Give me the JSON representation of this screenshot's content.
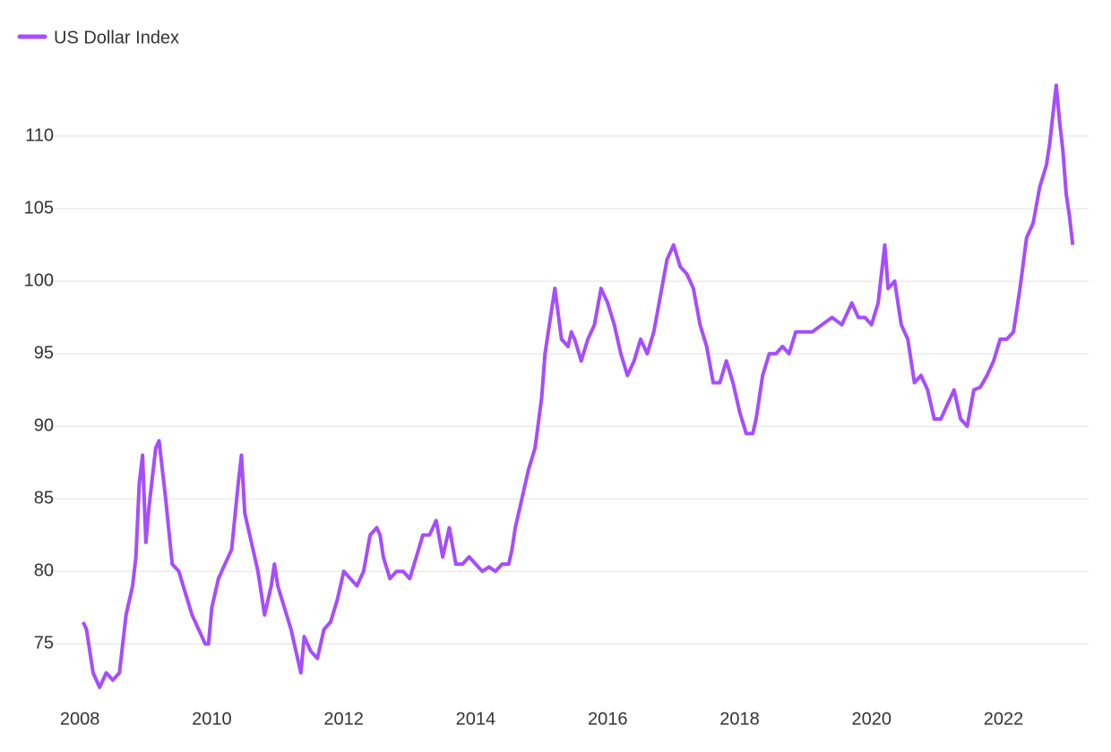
{
  "chart_data": {
    "type": "line",
    "x": [
      2008.05,
      2008.1,
      2008.2,
      2008.3,
      2008.4,
      2008.5,
      2008.6,
      2008.7,
      2008.8,
      2008.85,
      2008.9,
      2008.95,
      2009.0,
      2009.05,
      2009.15,
      2009.2,
      2009.3,
      2009.4,
      2009.5,
      2009.6,
      2009.7,
      2009.8,
      2009.9,
      2009.95,
      2010.0,
      2010.1,
      2010.2,
      2010.3,
      2010.4,
      2010.45,
      2010.5,
      2010.6,
      2010.7,
      2010.8,
      2010.9,
      2010.95,
      2011.0,
      2011.1,
      2011.2,
      2011.3,
      2011.35,
      2011.4,
      2011.5,
      2011.6,
      2011.7,
      2011.8,
      2011.9,
      2012.0,
      2012.1,
      2012.2,
      2012.3,
      2012.4,
      2012.5,
      2012.55,
      2012.6,
      2012.7,
      2012.8,
      2012.9,
      2013.0,
      2013.1,
      2013.2,
      2013.3,
      2013.4,
      2013.5,
      2013.6,
      2013.7,
      2013.8,
      2013.9,
      2014.0,
      2014.1,
      2014.2,
      2014.3,
      2014.4,
      2014.5,
      2014.55,
      2014.6,
      2014.7,
      2014.8,
      2014.9,
      2015.0,
      2015.05,
      2015.15,
      2015.2,
      2015.3,
      2015.4,
      2015.45,
      2015.5,
      2015.6,
      2015.7,
      2015.8,
      2015.9,
      2016.0,
      2016.1,
      2016.2,
      2016.3,
      2016.4,
      2016.5,
      2016.6,
      2016.7,
      2016.8,
      2016.9,
      2017.0,
      2017.1,
      2017.2,
      2017.3,
      2017.4,
      2017.5,
      2017.6,
      2017.7,
      2017.8,
      2017.9,
      2018.0,
      2018.1,
      2018.2,
      2018.25,
      2018.35,
      2018.45,
      2018.55,
      2018.65,
      2018.75,
      2018.85,
      2018.95,
      2019.1,
      2019.25,
      2019.4,
      2019.55,
      2019.7,
      2019.8,
      2019.9,
      2020.0,
      2020.1,
      2020.2,
      2020.25,
      2020.35,
      2020.45,
      2020.55,
      2020.65,
      2020.75,
      2020.85,
      2020.95,
      2021.05,
      2021.15,
      2021.25,
      2021.35,
      2021.45,
      2021.55,
      2021.65,
      2021.75,
      2021.85,
      2021.95,
      2022.05,
      2022.15,
      2022.25,
      2022.35,
      2022.45,
      2022.55,
      2022.65,
      2022.7,
      2022.75,
      2022.8,
      2022.85,
      2022.9,
      2022.95,
      2023.0,
      2023.05
    ],
    "series": [
      {
        "name": "US Dollar Index",
        "color": "#a64dff",
        "values": [
          76.5,
          76,
          73,
          72,
          73,
          72.5,
          73,
          77,
          79,
          81,
          86,
          88,
          82,
          84.5,
          88.5,
          89,
          85,
          80.5,
          80,
          78.5,
          77,
          76,
          75,
          75,
          77.5,
          79.5,
          80.5,
          81.5,
          86,
          88,
          84,
          82,
          80,
          77,
          79,
          80.5,
          79,
          77.5,
          76,
          74,
          73,
          75.5,
          74.5,
          74,
          76,
          76.5,
          78,
          80,
          79.5,
          79,
          80,
          82.5,
          83,
          82.5,
          81,
          79.5,
          80,
          80,
          79.5,
          81,
          82.5,
          82.5,
          83.5,
          81,
          83,
          80.5,
          80.5,
          81,
          80.5,
          80,
          80.3,
          80,
          80.5,
          80.5,
          81.5,
          83,
          85,
          87,
          88.5,
          92,
          95,
          98,
          99.5,
          96,
          95.5,
          96.5,
          96,
          94.5,
          96,
          97,
          99.5,
          98.5,
          97,
          95,
          93.5,
          94.5,
          96,
          95,
          96.5,
          99,
          101.5,
          102.5,
          101,
          100.5,
          99.5,
          97,
          95.5,
          93,
          93,
          94.5,
          93,
          91,
          89.5,
          89.5,
          90.5,
          93.5,
          95,
          95,
          95.5,
          95,
          96.5,
          96.5,
          96.5,
          97,
          97.5,
          97,
          98.5,
          97.5,
          97.5,
          97,
          98.5,
          102.5,
          99.5,
          100,
          97,
          96,
          93,
          93.5,
          92.5,
          90.5,
          90.5,
          91.5,
          92.5,
          90.5,
          90,
          92.5,
          92.7,
          93.5,
          94.5,
          96,
          96,
          96.5,
          99.5,
          103,
          104,
          106.5,
          108,
          109.5,
          111.5,
          113.5,
          111,
          109,
          106,
          104.5,
          102.5
        ]
      }
    ],
    "xlim": [
      2007.36,
      2023.29
    ],
    "xticks": [
      2008,
      2010,
      2012,
      2014,
      2016,
      2018,
      2020,
      2022
    ],
    "ylim": [
      71,
      115
    ],
    "yticks": [
      75,
      80,
      85,
      90,
      95,
      100,
      105,
      110
    ],
    "grid": true,
    "legend": "top-left"
  }
}
